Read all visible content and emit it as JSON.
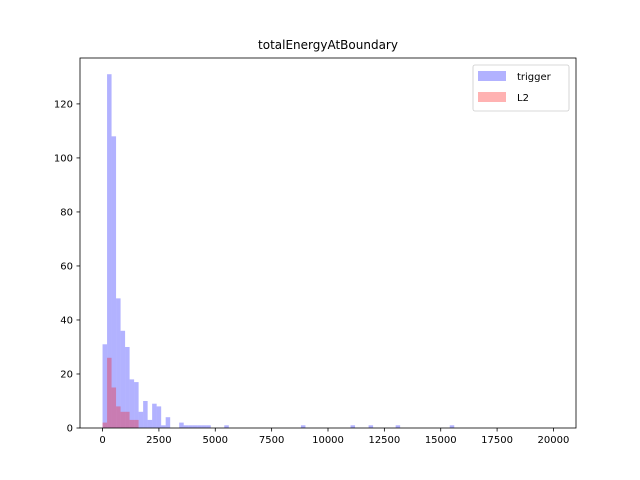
{
  "chart_data": {
    "type": "bar",
    "title": "totalEnergyAtBoundary",
    "xlabel": "",
    "ylabel": "",
    "xlim": [
      -1000,
      21000
    ],
    "ylim": [
      0,
      137
    ],
    "x_ticks": [
      0,
      2500,
      5000,
      7500,
      10000,
      12500,
      15000,
      17500,
      20000
    ],
    "y_ticks": [
      0,
      20,
      40,
      60,
      80,
      100,
      120
    ],
    "bin_width": 200,
    "legend_position": "top-right",
    "series": [
      {
        "name": "trigger",
        "color": "#0000ff",
        "alpha": 0.3,
        "bins": [
          {
            "x": 0,
            "count": 31
          },
          {
            "x": 200,
            "count": 131
          },
          {
            "x": 400,
            "count": 108
          },
          {
            "x": 600,
            "count": 48
          },
          {
            "x": 800,
            "count": 36
          },
          {
            "x": 1000,
            "count": 30
          },
          {
            "x": 1200,
            "count": 18
          },
          {
            "x": 1400,
            "count": 17
          },
          {
            "x": 1600,
            "count": 6
          },
          {
            "x": 1800,
            "count": 10
          },
          {
            "x": 2000,
            "count": 3
          },
          {
            "x": 2200,
            "count": 9
          },
          {
            "x": 2400,
            "count": 8
          },
          {
            "x": 2600,
            "count": 1
          },
          {
            "x": 2800,
            "count": 4
          },
          {
            "x": 3400,
            "count": 2
          },
          {
            "x": 3600,
            "count": 1
          },
          {
            "x": 3800,
            "count": 1
          },
          {
            "x": 4000,
            "count": 1
          },
          {
            "x": 4200,
            "count": 1
          },
          {
            "x": 4400,
            "count": 1
          },
          {
            "x": 4600,
            "count": 1
          },
          {
            "x": 5400,
            "count": 1
          },
          {
            "x": 8800,
            "count": 1
          },
          {
            "x": 11000,
            "count": 1
          },
          {
            "x": 11800,
            "count": 1
          },
          {
            "x": 13000,
            "count": 1
          },
          {
            "x": 15400,
            "count": 1
          }
        ]
      },
      {
        "name": "L2",
        "color": "#ff0000",
        "alpha": 0.3,
        "bins": [
          {
            "x": 0,
            "count": 2
          },
          {
            "x": 200,
            "count": 26
          },
          {
            "x": 400,
            "count": 15
          },
          {
            "x": 600,
            "count": 8
          },
          {
            "x": 800,
            "count": 6
          },
          {
            "x": 1000,
            "count": 6
          },
          {
            "x": 1200,
            "count": 3
          },
          {
            "x": 1400,
            "count": 3
          }
        ]
      }
    ]
  }
}
